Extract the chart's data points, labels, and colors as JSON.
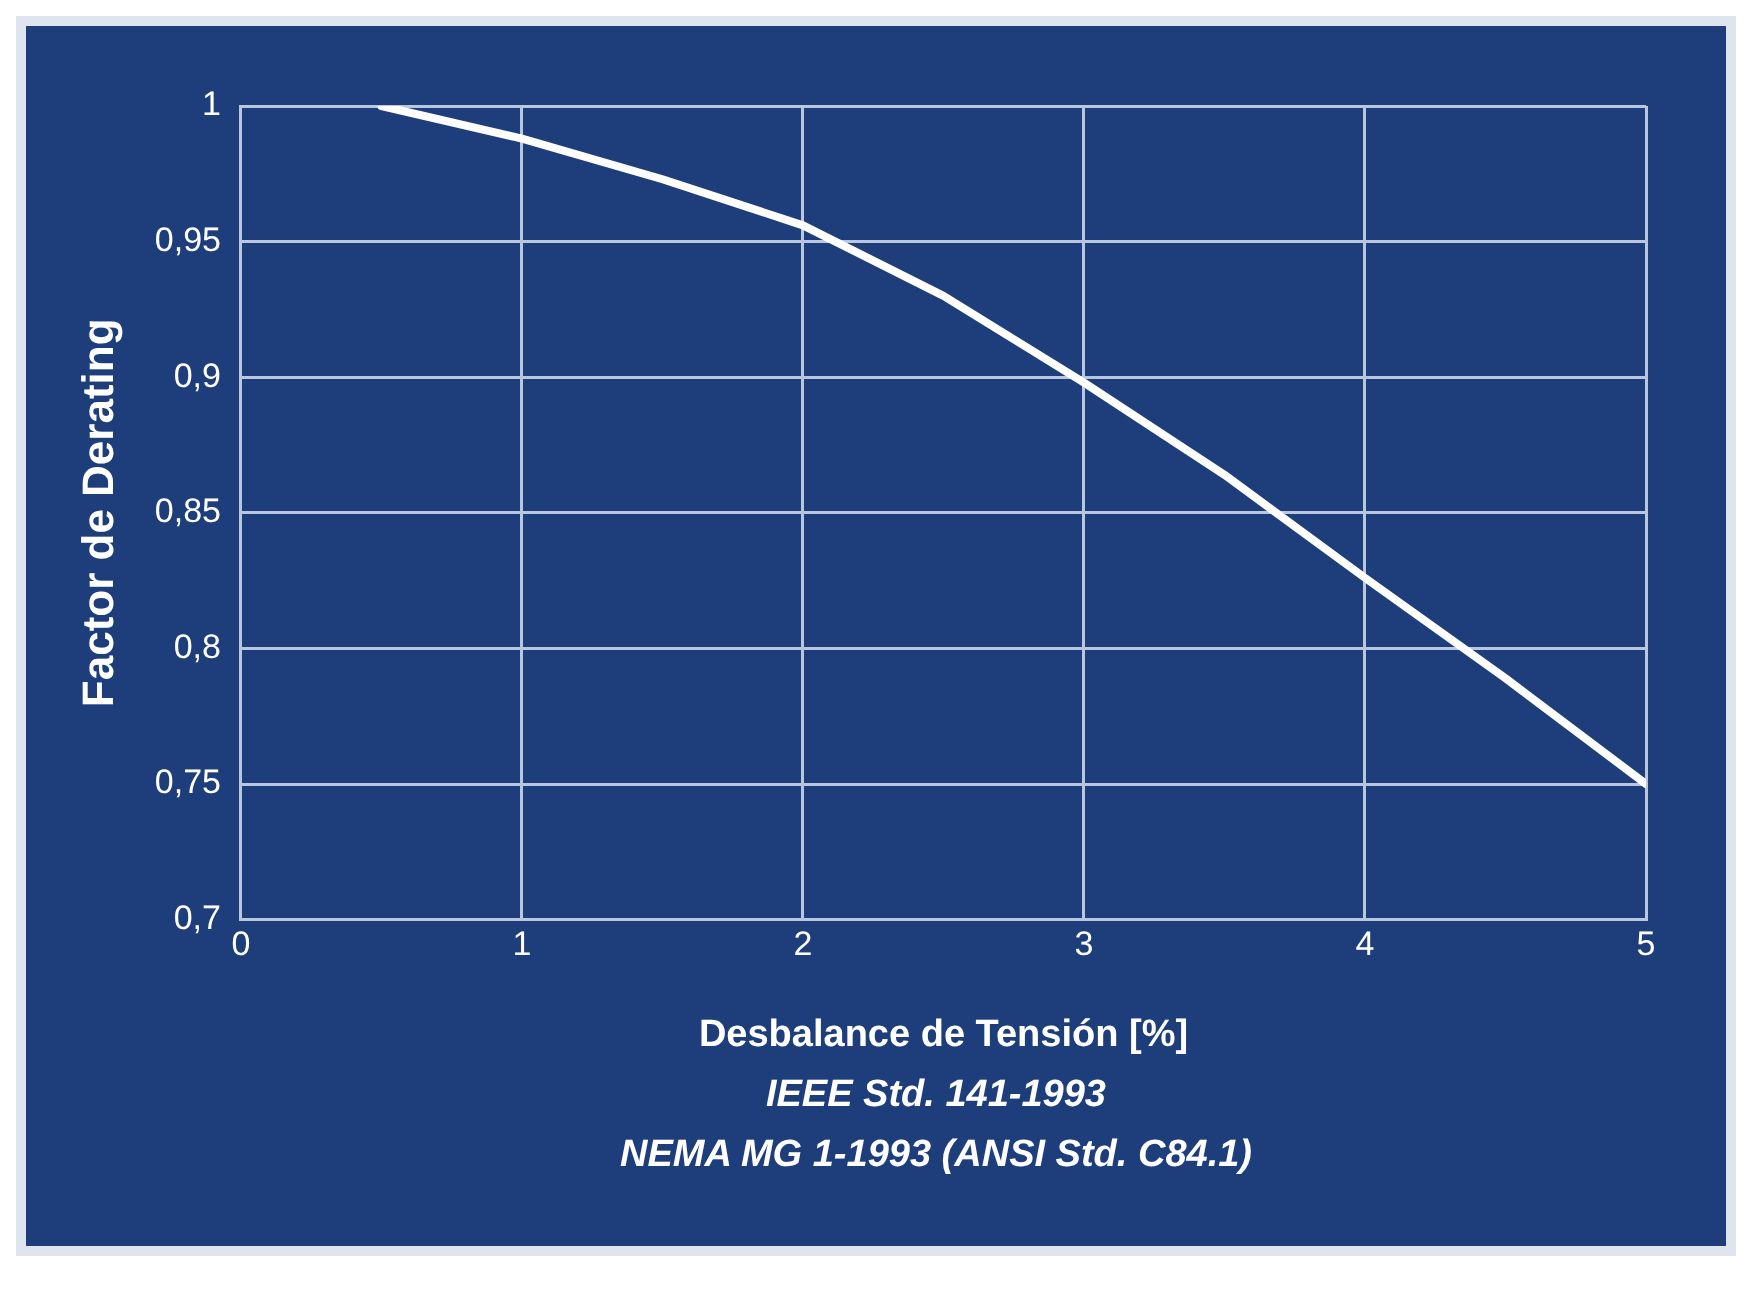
{
  "chart_data": {
    "type": "line",
    "xlabel": "Desbalance de Tensión [%]",
    "ylabel": "Factor de Derating",
    "annotations": [
      "IEEE Std. 141-1993",
      "NEMA MG 1-1993 (ANSI Std. C84.1)"
    ],
    "x": [
      0.5,
      1,
      1.5,
      2,
      2.5,
      3,
      3.5,
      4,
      4.5,
      5
    ],
    "series": [
      {
        "color": "#ffffff",
        "values": [
          1,
          0.988,
          0.973,
          0.956,
          0.93,
          0.898,
          0.864,
          0.826,
          0.789,
          0.75
        ]
      }
    ],
    "xlim": [
      0,
      5
    ],
    "xticks": [
      0,
      1,
      2,
      3,
      4,
      5
    ],
    "ylim": [
      0.7,
      1
    ],
    "yticks": [
      {
        "value": 0.7,
        "label": "0,7"
      },
      {
        "value": 0.75,
        "label": "0,75"
      },
      {
        "value": 0.8,
        "label": "0,8"
      },
      {
        "value": 0.85,
        "label": "0,85"
      },
      {
        "value": 0.9,
        "label": "0,9"
      },
      {
        "value": 0.95,
        "label": "0,95"
      },
      1
    ],
    "grid": true,
    "legend": false,
    "marker": "none",
    "line_style": "solid"
  }
}
